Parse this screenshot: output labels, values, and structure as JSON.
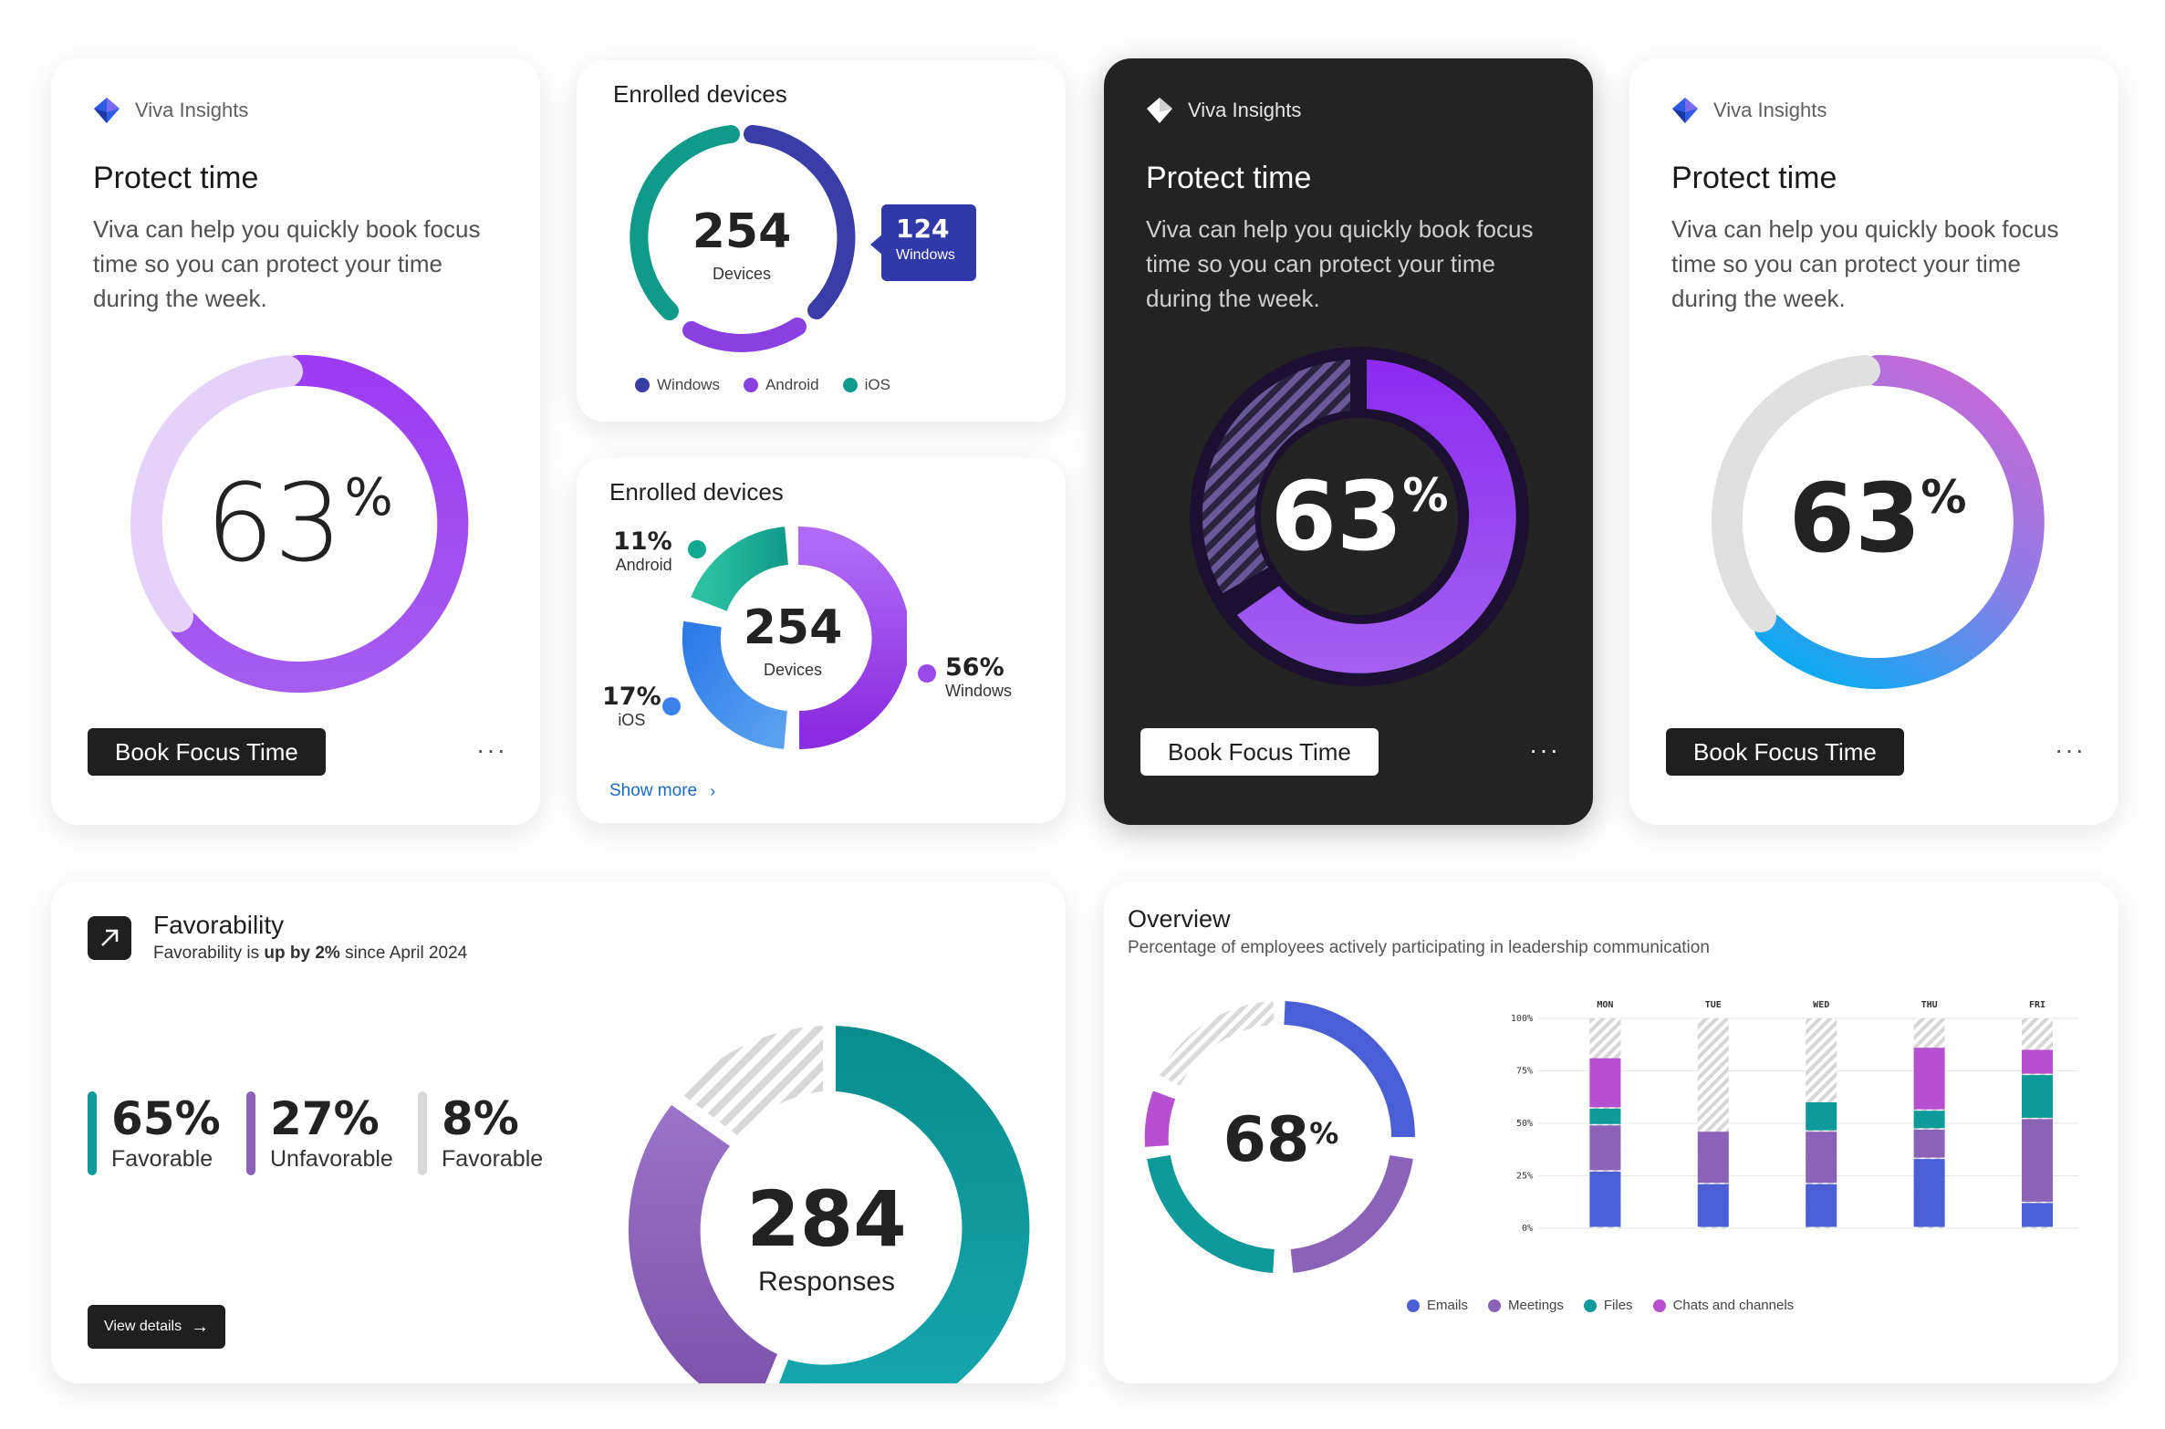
{
  "brand_name": "Viva Insights",
  "protect_cards": [
    {
      "title": "Protect time",
      "description": "Viva can help you quickly book focus time so you can protect your time during the week.",
      "percent": "63",
      "percent_symbol": "%",
      "button_label": "Book Focus Time",
      "more_label": "···"
    },
    {
      "title": "Protect time",
      "description": "Viva can help you quickly book focus time so you can protect your time during the week.",
      "percent": "63",
      "percent_symbol": "%",
      "button_label": "Book Focus Time",
      "more_label": "···"
    },
    {
      "title": "Protect time",
      "description": "Viva can help you quickly book focus time so you can protect your time during the week.",
      "percent": "63",
      "percent_symbol": "%",
      "button_label": "Book Focus Time",
      "more_label": "···"
    }
  ],
  "enrolled_ring": {
    "title": "Enrolled devices",
    "total": "254",
    "total_label": "Devices",
    "callout_value": "124",
    "callout_label": "Windows",
    "legend": [
      "Windows",
      "Android",
      "iOS"
    ],
    "colors": {
      "windows": "#3a3da8",
      "android": "#8a3fe0",
      "ios": "#0f9a8a"
    }
  },
  "enrolled_donut": {
    "title": "Enrolled devices",
    "total": "254",
    "total_label": "Devices",
    "segments": [
      {
        "label": "Android",
        "value": "11%"
      },
      {
        "label": "iOS",
        "value": "17%"
      },
      {
        "label": "Windows",
        "value": "56%"
      }
    ],
    "show_more": "Show more",
    "show_more_icon": "chevron-right-icon"
  },
  "favorability": {
    "title": "Favorability",
    "subtitle_prefix": "Favorability is ",
    "subtitle_bold": "up by 2%",
    "subtitle_suffix": " since April 2024",
    "stats": [
      {
        "value": "65%",
        "label": "Favorable",
        "color": "#0f9a9a"
      },
      {
        "value": "27%",
        "label": "Unfavorable",
        "color": "#8a63b8"
      },
      {
        "value": "8%",
        "label": "Favorable",
        "color": "#d9d9d9"
      }
    ],
    "total": "284",
    "total_label": "Responses",
    "button_label": "View details",
    "button_icon": "arrow-right-icon"
  },
  "overview": {
    "title": "Overview",
    "subtitle": "Percentage of employees actively participating in leadership communication",
    "percent": "68",
    "percent_symbol": "%",
    "legend": [
      "Emails",
      "Meetings",
      "Files",
      "Chats and channels"
    ]
  },
  "chart_data": {
    "type": "bar",
    "stacked": true,
    "categories": [
      "MON",
      "TUE",
      "WED",
      "THU",
      "FRI"
    ],
    "series": [
      {
        "name": "Emails",
        "color": "#4a5fd6",
        "values": [
          27,
          21,
          21,
          33,
          12
        ]
      },
      {
        "name": "Meetings",
        "color": "#8a63b8",
        "values": [
          22,
          25,
          25,
          14,
          40
        ]
      },
      {
        "name": "Files",
        "color": "#0f9a9a",
        "values": [
          8,
          0,
          14,
          9,
          21
        ]
      },
      {
        "name": "Chats and channels",
        "color": "#b64fd0",
        "values": [
          24,
          0,
          0,
          30,
          12
        ]
      }
    ],
    "ylim": [
      0,
      100
    ],
    "yticks": [
      "0%",
      "25%",
      "50%",
      "75%",
      "100%"
    ],
    "grid": true,
    "legend_position": "bottom"
  }
}
